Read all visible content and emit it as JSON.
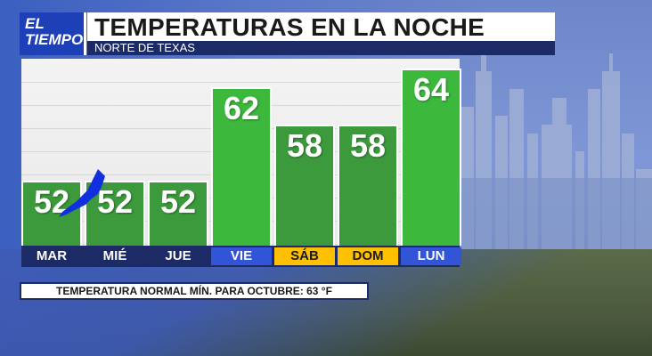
{
  "header": {
    "logo_line1": "EL",
    "logo_line2": "TIEMPO",
    "title": "TEMPERATURAS EN LA NOCHE",
    "subtitle": "NORTE DE TEXAS"
  },
  "colors": {
    "bar_dark": "#3c9a3c",
    "bar_bright": "#3cb83c",
    "day_row": "#1c2a66",
    "weekend_highlight": "#ffc000",
    "logo_blue": "#1d3fb7"
  },
  "chart_data": {
    "type": "bar",
    "categories": [
      "MAR",
      "MIÉ",
      "JUE",
      "VIE",
      "SÁB",
      "DOM",
      "LUN"
    ],
    "values": [
      52,
      52,
      52,
      62,
      58,
      58,
      64
    ],
    "ylim": [
      45,
      65
    ],
    "weekend": [
      "SÁB",
      "DOM"
    ],
    "highlighted": [
      "VIE",
      "LUN"
    ],
    "grid": true
  },
  "footer": {
    "normal_text": "TEMPERATURA NORMAL MÍN. PARA OCTUBRE: 63 °F"
  }
}
